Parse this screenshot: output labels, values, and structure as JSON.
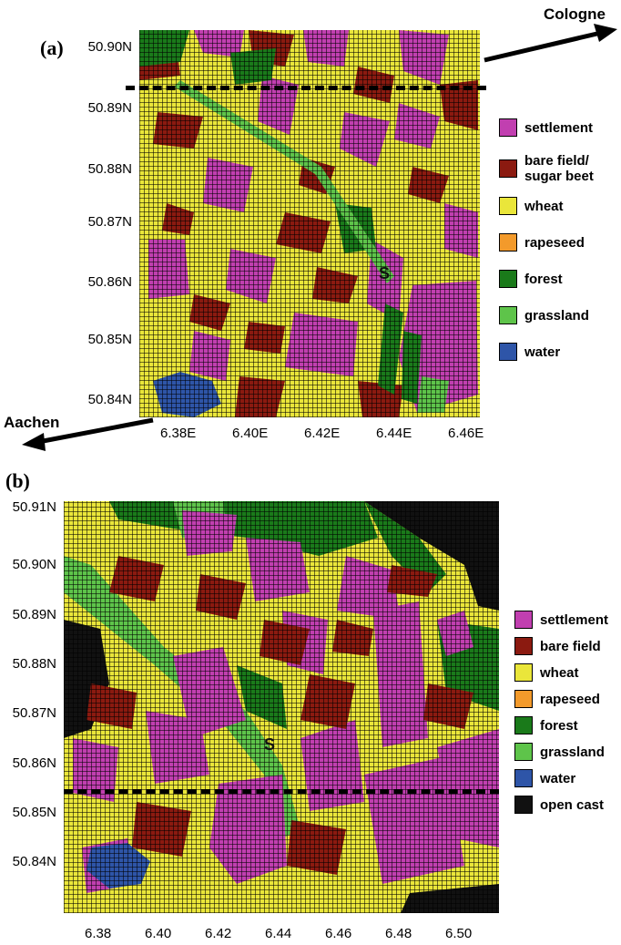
{
  "panel_a": {
    "label": "(a)",
    "city_upper": "Cologne",
    "city_lower": "Aachen",
    "station_marker": "S",
    "y_ticks": [
      "50.90N",
      "50.89N",
      "50.88N",
      "50.87N",
      "50.86N",
      "50.85N",
      "50.84N"
    ],
    "x_ticks": [
      "6.38E",
      "6.40E",
      "6.42E",
      "6.44E",
      "6.46E"
    ],
    "legend": [
      {
        "label": "settlement",
        "color": "#c13fb0"
      },
      {
        "label": "bare field/\nsugar beet",
        "color": "#8b1a10"
      },
      {
        "label": "wheat",
        "color": "#eae63a"
      },
      {
        "label": "rapeseed",
        "color": "#f39a2b"
      },
      {
        "label": "forest",
        "color": "#1a7a1a"
      },
      {
        "label": "grassland",
        "color": "#5ec44a"
      },
      {
        "label": "water",
        "color": "#2e55a8"
      }
    ]
  },
  "panel_b": {
    "label": "(b)",
    "station_marker": "S",
    "y_ticks": [
      "50.91N",
      "50.90N",
      "50.89N",
      "50.88N",
      "50.87N",
      "50.86N",
      "50.85N",
      "50.84N"
    ],
    "x_ticks": [
      "6.38",
      "6.40",
      "6.42",
      "6.44",
      "6.46",
      "6.48",
      "6.50"
    ],
    "legend": [
      {
        "label": "settlement",
        "color": "#c13fb0"
      },
      {
        "label": "bare field",
        "color": "#8b1a10"
      },
      {
        "label": "wheat",
        "color": "#eae63a"
      },
      {
        "label": "rapeseed",
        "color": "#f39a2b"
      },
      {
        "label": "forest",
        "color": "#1a7a1a"
      },
      {
        "label": "grassland",
        "color": "#5ec44a"
      },
      {
        "label": "water",
        "color": "#2e55a8"
      },
      {
        "label": "open cast",
        "color": "#111111"
      }
    ]
  }
}
